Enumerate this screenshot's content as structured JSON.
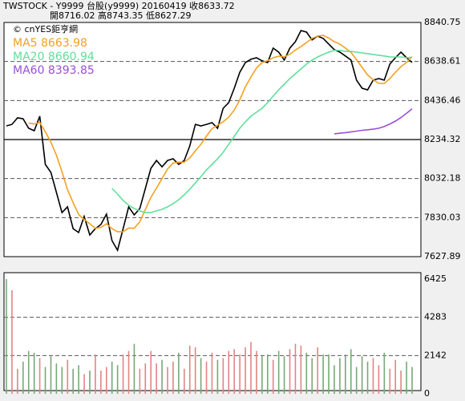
{
  "chart_data": [
    {
      "type": "line",
      "title": "TWSTOCK - Y9999  台股(y9999) 20160419   收8633.72",
      "subtitle": "開8716.02   高8743.35   低8627.29",
      "watermark": "© cnYES鉅亨網",
      "ylim": [
        7627.89,
        8840.75
      ],
      "yticks": [
        7627.89,
        7830.03,
        8032.18,
        8234.32,
        8436.46,
        8638.61,
        8840.75
      ],
      "grid": true,
      "series": [
        {
          "color": "#000000",
          "values": [
            8305,
            8313,
            8347,
            8342,
            8293,
            8280,
            8355,
            8106,
            8064,
            7960,
            7856,
            7886,
            7773,
            7753,
            7836,
            7740,
            7773,
            7794,
            7848,
            7711,
            7661,
            7773,
            7886,
            7844,
            7877,
            7981,
            8085,
            8126,
            8093,
            8126,
            8135,
            8106,
            8126,
            8201,
            8313,
            8305,
            8313,
            8322,
            8293,
            8396,
            8426,
            8500,
            8583,
            8633,
            8650,
            8658,
            8642,
            8633,
            8708,
            8687,
            8646,
            8708,
            8741,
            8799,
            8791,
            8750,
            8770,
            8758,
            8729,
            8700,
            8687,
            8667,
            8646,
            8542,
            8500,
            8492,
            8542,
            8550,
            8542,
            8625,
            8658,
            8687,
            8658,
            8633.72
          ]
        },
        {
          "name": "MA5 8663.98",
          "color": "#f5a020",
          "values": [
            null,
            null,
            null,
            null,
            8320,
            8315,
            8323,
            8275,
            8220,
            8153,
            8068,
            7974,
            7908,
            7846,
            7821,
            7798,
            7775,
            7779,
            7798,
            7773,
            7757,
            7757,
            7776,
            7775,
            7808,
            7872,
            7935,
            7983,
            8032,
            8082,
            8113,
            8117,
            8117,
            8139,
            8176,
            8210,
            8252,
            8291,
            8309,
            8326,
            8350,
            8387,
            8440,
            8508,
            8558,
            8605,
            8633,
            8643,
            8658,
            8666,
            8663,
            8676,
            8698,
            8716,
            8737,
            8758,
            8770,
            8774,
            8760,
            8741,
            8729,
            8708,
            8686,
            8648,
            8608,
            8569,
            8544,
            8525,
            8525,
            8550,
            8583,
            8612,
            8634,
            8663.98
          ]
        },
        {
          "name": "MA20 8660.94",
          "color": "#60e09a",
          "values": [
            null,
            null,
            null,
            null,
            null,
            null,
            null,
            null,
            null,
            null,
            null,
            null,
            null,
            null,
            null,
            null,
            null,
            null,
            null,
            7981,
            7952,
            7919,
            7894,
            7877,
            7865,
            7856,
            7856,
            7865,
            7873,
            7886,
            7902,
            7923,
            7948,
            7977,
            8010,
            8043,
            8077,
            8106,
            8135,
            8168,
            8210,
            8251,
            8293,
            8326,
            8355,
            8376,
            8396,
            8426,
            8459,
            8492,
            8521,
            8550,
            8575,
            8600,
            8625,
            8646,
            8662,
            8675,
            8687,
            8696,
            8696,
            8691,
            8691,
            8687,
            8683,
            8679,
            8675,
            8671,
            8667,
            8662,
            8662,
            8662,
            8658,
            8660.94
          ]
        },
        {
          "name": "MA60 8393.85",
          "color": "#9a50d8",
          "values": [
            null,
            null,
            null,
            null,
            null,
            null,
            null,
            null,
            null,
            null,
            null,
            null,
            null,
            null,
            null,
            null,
            null,
            null,
            null,
            null,
            null,
            null,
            null,
            null,
            null,
            null,
            null,
            null,
            null,
            null,
            null,
            null,
            null,
            null,
            null,
            null,
            null,
            null,
            null,
            null,
            null,
            null,
            null,
            null,
            null,
            null,
            null,
            null,
            null,
            null,
            null,
            null,
            null,
            null,
            null,
            null,
            null,
            null,
            null,
            8264,
            8267,
            8270,
            8274,
            8278,
            8282,
            8285,
            8288,
            8293,
            8302,
            8315,
            8330,
            8348,
            8370,
            8393.85
          ]
        }
      ]
    },
    {
      "type": "bar",
      "ylim": [
        0,
        6425
      ],
      "yticks": [
        0,
        2142,
        4283,
        6425
      ],
      "grid": true,
      "up_color": "#e08585",
      "down_color": "#78a878",
      "values": [
        6425,
        5800,
        1400,
        1800,
        2400,
        2300,
        2000,
        1500,
        2100,
        1700,
        1500,
        1900,
        1400,
        1600,
        1100,
        1300,
        2200,
        1300,
        1500,
        1800,
        1600,
        2200,
        2400,
        2800,
        1400,
        1700,
        2400,
        1700,
        1900,
        1500,
        1800,
        2300,
        1400,
        2700,
        2600,
        2000,
        1800,
        2300,
        1900,
        2000,
        2400,
        2500,
        2200,
        2600,
        2900,
        2400,
        2100,
        2200,
        1900,
        2400,
        2100,
        2500,
        2800,
        2700,
        2300,
        2000,
        2600,
        2200,
        2200,
        1600,
        2000,
        2200,
        2500,
        1500,
        2100,
        1800,
        2000,
        1600,
        2300,
        1400,
        1900,
        1300,
        1800,
        1500
      ]
    }
  ]
}
